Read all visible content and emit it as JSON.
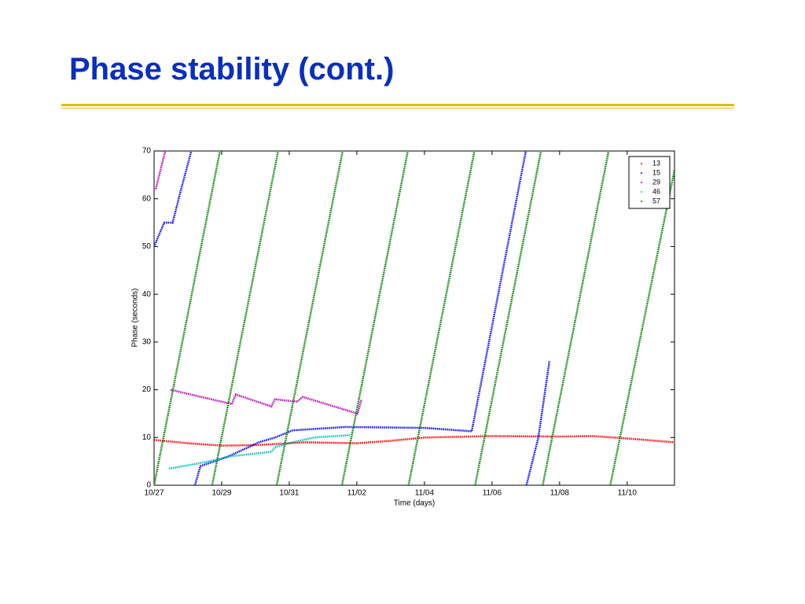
{
  "title": "Phase stability (cont.)",
  "chart_data": {
    "type": "scatter",
    "xlabel": "Time (days)",
    "ylabel": "Phase (seconds)",
    "xlim": [
      0,
      15.4
    ],
    "ylim": [
      0,
      70
    ],
    "xticks": [
      {
        "value": 0,
        "label": "10/27"
      },
      {
        "value": 2,
        "label": "10/29"
      },
      {
        "value": 4,
        "label": "10/31"
      },
      {
        "value": 6,
        "label": "11/02"
      },
      {
        "value": 8,
        "label": "11/04"
      },
      {
        "value": 10,
        "label": "11/06"
      },
      {
        "value": 12,
        "label": "11/08"
      },
      {
        "value": 14,
        "label": "11/10"
      }
    ],
    "yticks": [
      0,
      10,
      20,
      30,
      40,
      50,
      60,
      70
    ],
    "legend": "upper right",
    "grid": false,
    "series": [
      {
        "name": "13",
        "color": "#ff0000",
        "x": [
          0,
          1,
          2,
          3,
          4.5,
          6,
          7,
          8,
          10,
          12,
          13,
          14,
          15.4
        ],
        "values": [
          9.5,
          8.8,
          8.3,
          8.4,
          9,
          8.8,
          9.3,
          10,
          10.3,
          10.2,
          10.3,
          9.8,
          9
        ]
      },
      {
        "name": "15",
        "color": "#0000ff",
        "x": [
          0,
          0.3,
          0.55,
          0.8,
          1.1,
          1.15,
          1.21,
          1.37,
          2.19,
          3.1,
          3.58,
          4.1,
          5.67,
          8.0,
          9.4,
          11.0,
          11.01,
          11.02,
          11.37,
          11.7
        ],
        "values": [
          50,
          55,
          55,
          62,
          70,
          null,
          0,
          4,
          6,
          9,
          10,
          11.5,
          12.2,
          12,
          11.3,
          70,
          null,
          0,
          10,
          26
        ]
      },
      {
        "name": "29",
        "color": "#c000c0",
        "x": [
          0.05,
          0.33,
          0.4,
          0.49,
          2.3,
          2.42,
          3.47,
          3.58,
          4.23,
          4.4,
          6.02,
          6.14
        ],
        "values": [
          62,
          70,
          null,
          20,
          17,
          19,
          16.5,
          18,
          17.5,
          18.5,
          15,
          18
        ]
      },
      {
        "name": "46",
        "color": "#00c0c0",
        "x": [
          0.44,
          1.26,
          1.95,
          2.19,
          3.47,
          3.58,
          4.1,
          4.74,
          5.79
        ],
        "values": [
          3.5,
          4.5,
          5.5,
          6,
          7,
          8,
          9,
          10,
          10.5
        ]
      },
      {
        "name": "57",
        "color": "#008000",
        "x": [
          0,
          1.95,
          1.96,
          1.72,
          3.67,
          3.68,
          3.63,
          5.58,
          5.59,
          5.56,
          7.51,
          7.52,
          7.53,
          9.48,
          9.49,
          9.5,
          11.45,
          11.46,
          11.5,
          13.45,
          13.46,
          13.5,
          15.4
        ],
        "values": [
          0,
          70,
          null,
          0,
          70,
          null,
          0,
          70,
          null,
          0,
          70,
          null,
          0,
          70,
          null,
          0,
          70,
          null,
          0,
          70,
          null,
          0,
          66
        ]
      }
    ]
  }
}
